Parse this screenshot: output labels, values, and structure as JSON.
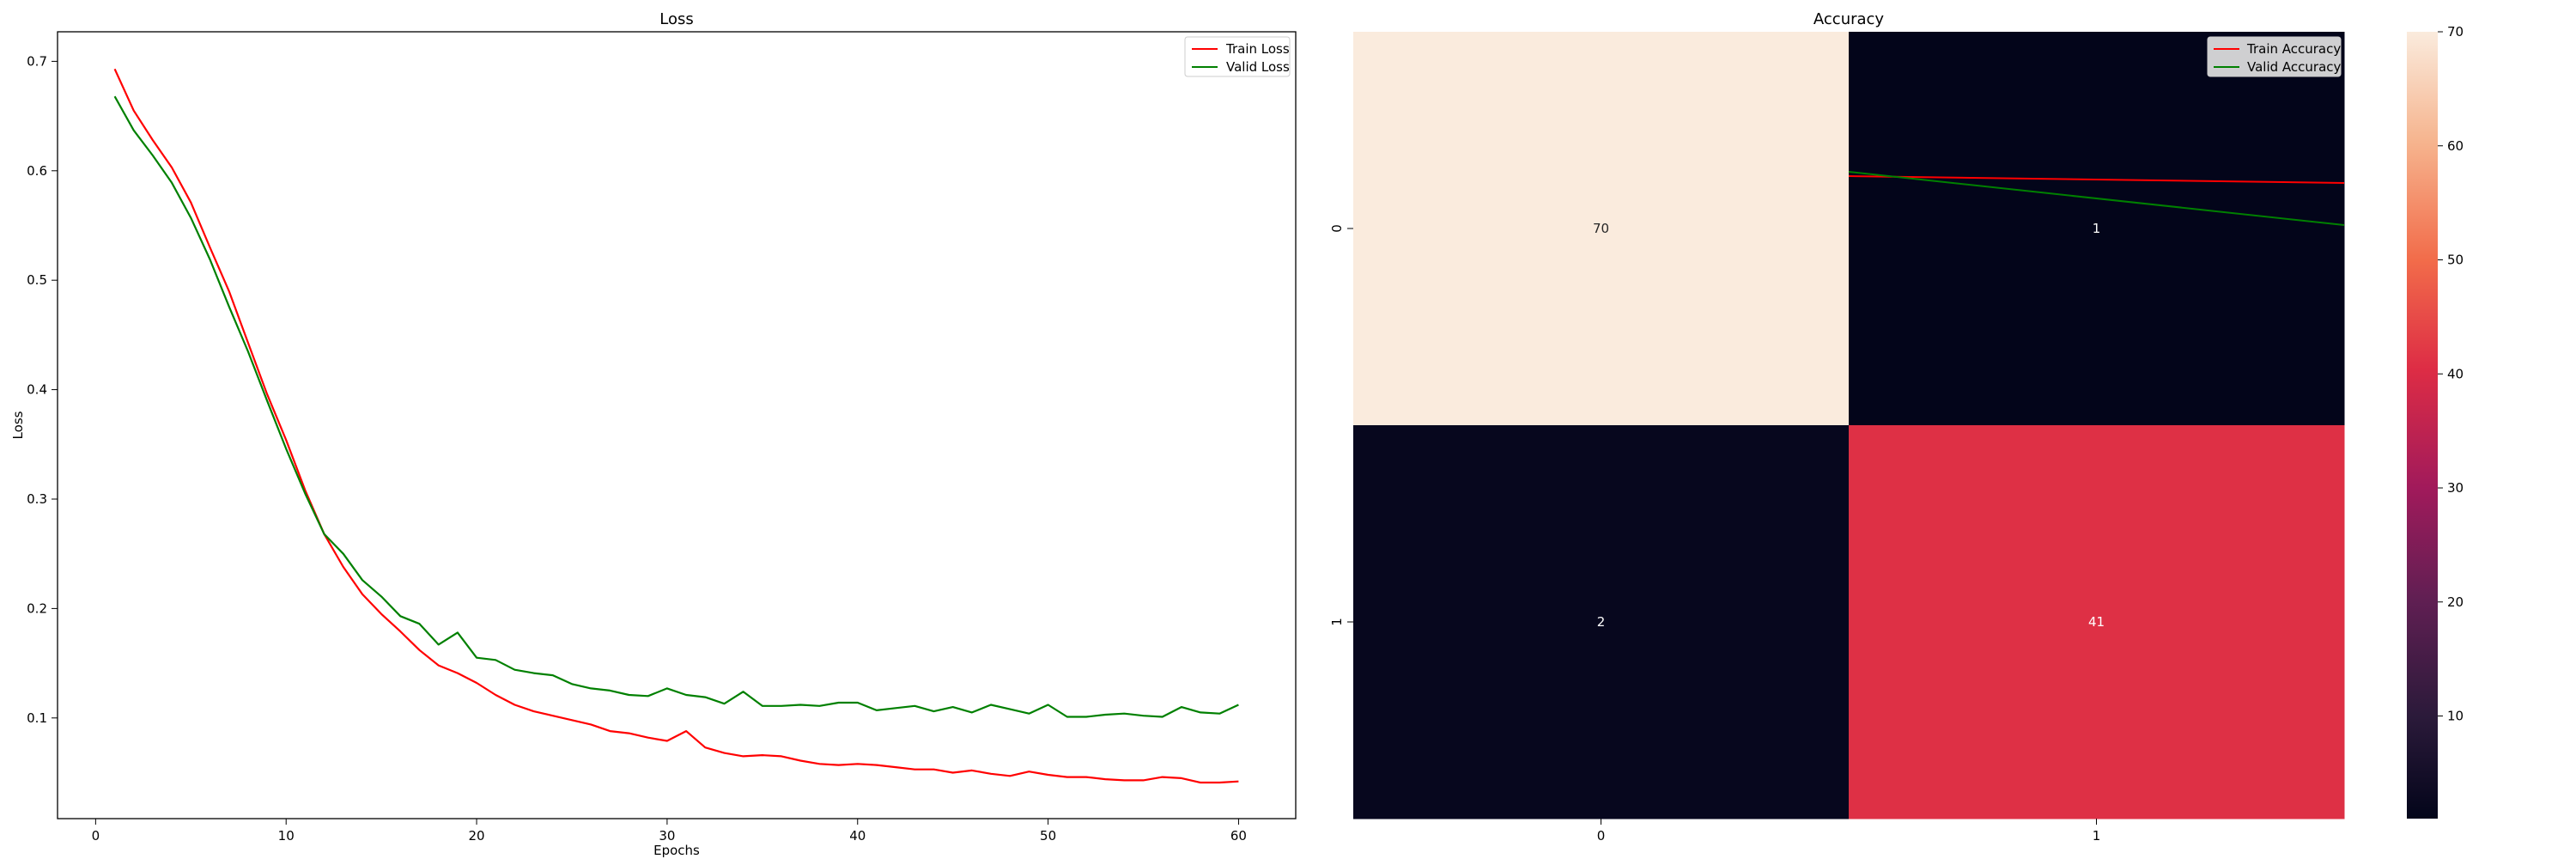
{
  "chart_data": [
    {
      "type": "line",
      "title": "Loss",
      "xlabel": "Epochs",
      "ylabel": "Loss",
      "xlim": [
        -2,
        63
      ],
      "ylim": [
        0.008,
        0.727
      ],
      "xticks": [
        0,
        10,
        20,
        30,
        40,
        50,
        60
      ],
      "yticks": [
        0.1,
        0.2,
        0.3,
        0.4,
        0.5,
        0.6,
        0.7
      ],
      "legend": "top-right",
      "grid": false,
      "series": [
        {
          "name": "Train Loss",
          "color": "#ff0000",
          "x": [
            1,
            2,
            3,
            4,
            5,
            6,
            7,
            8,
            9,
            10,
            11,
            12,
            13,
            14,
            15,
            16,
            17,
            18,
            19,
            20,
            21,
            22,
            23,
            24,
            25,
            26,
            27,
            28,
            29,
            30,
            31,
            32,
            33,
            34,
            35,
            36,
            37,
            38,
            39,
            40,
            41,
            42,
            43,
            44,
            45,
            46,
            47,
            48,
            49,
            50,
            51,
            52,
            53,
            54,
            55,
            56,
            57,
            58,
            59,
            60
          ],
          "values": [
            0.693,
            0.655,
            0.628,
            0.603,
            0.571,
            0.53,
            0.49,
            0.443,
            0.396,
            0.354,
            0.308,
            0.268,
            0.238,
            0.213,
            0.195,
            0.179,
            0.162,
            0.148,
            0.141,
            0.132,
            0.121,
            0.112,
            0.106,
            0.102,
            0.098,
            0.094,
            0.088,
            0.086,
            0.082,
            0.079,
            0.088,
            0.073,
            0.068,
            0.065,
            0.066,
            0.065,
            0.061,
            0.058,
            0.057,
            0.058,
            0.057,
            0.055,
            0.053,
            0.053,
            0.05,
            0.052,
            0.049,
            0.047,
            0.051,
            0.048,
            0.046,
            0.046,
            0.044,
            0.043,
            0.043,
            0.046,
            0.045,
            0.041,
            0.041,
            0.042
          ]
        },
        {
          "name": "Valid Loss",
          "color": "#008000",
          "x": [
            1,
            2,
            3,
            4,
            5,
            6,
            7,
            8,
            9,
            10,
            11,
            12,
            13,
            14,
            15,
            16,
            17,
            18,
            19,
            20,
            21,
            22,
            23,
            24,
            25,
            26,
            27,
            28,
            29,
            30,
            31,
            32,
            33,
            34,
            35,
            36,
            37,
            38,
            39,
            40,
            41,
            42,
            43,
            44,
            45,
            46,
            47,
            48,
            49,
            50,
            51,
            52,
            53,
            54,
            55,
            56,
            57,
            58,
            59,
            60
          ],
          "values": [
            0.668,
            0.637,
            0.614,
            0.589,
            0.557,
            0.519,
            0.476,
            0.435,
            0.39,
            0.346,
            0.305,
            0.268,
            0.25,
            0.226,
            0.211,
            0.193,
            0.186,
            0.167,
            0.178,
            0.155,
            0.153,
            0.144,
            0.141,
            0.139,
            0.131,
            0.127,
            0.125,
            0.121,
            0.12,
            0.127,
            0.121,
            0.119,
            0.113,
            0.124,
            0.111,
            0.111,
            0.112,
            0.111,
            0.114,
            0.114,
            0.107,
            0.109,
            0.111,
            0.106,
            0.11,
            0.105,
            0.112,
            0.108,
            0.104,
            0.112,
            0.101,
            0.101,
            0.103,
            0.104,
            0.102,
            0.101,
            0.11,
            0.105,
            0.104,
            0.112
          ]
        }
      ]
    },
    {
      "type": "heatmap",
      "title": "Accuracy",
      "xticklabels": [
        "0",
        "1"
      ],
      "yticklabels": [
        "0",
        "1"
      ],
      "matrix": [
        [
          70,
          1
        ],
        [
          2,
          41
        ]
      ],
      "colorbar": {
        "min": 1,
        "max": 70,
        "ticks": [
          10,
          20,
          30,
          40,
          50,
          60,
          70
        ]
      },
      "legend": "top-right",
      "overlay_series": [
        {
          "name": "Train Accuracy",
          "color": "#ff0000"
        },
        {
          "name": "Valid Accuracy",
          "color": "#008000"
        }
      ]
    }
  ]
}
